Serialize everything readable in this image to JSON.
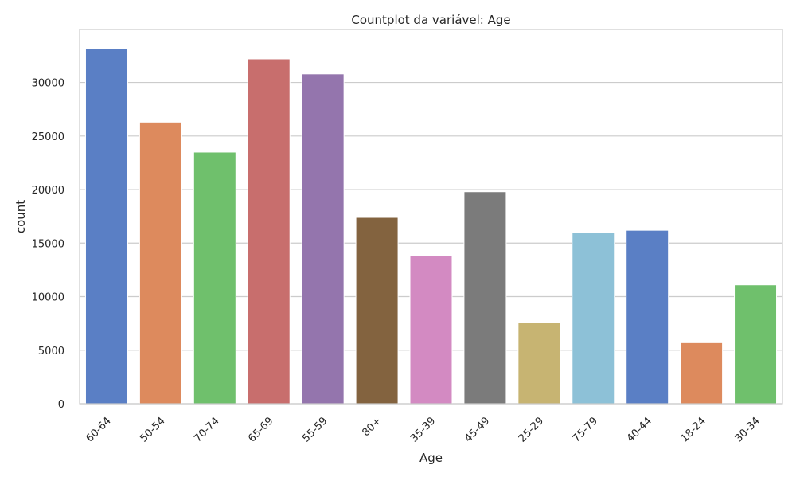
{
  "chart_data": {
    "type": "bar",
    "title": "Countplot da variável: Age",
    "xlabel": "Age",
    "ylabel": "count",
    "categories": [
      "60-64",
      "50-54",
      "70-74",
      "65-69",
      "55-59",
      "80+",
      "35-39",
      "45-49",
      "25-29",
      "75-79",
      "40-44",
      "18-24",
      "30-34"
    ],
    "values": [
      33200,
      26300,
      23500,
      32200,
      30800,
      17400,
      13800,
      19800,
      7600,
      16000,
      16200,
      5700,
      11100
    ],
    "colors": [
      "#5a7fc5",
      "#dd8a5d",
      "#6fc06c",
      "#c86e6d",
      "#9475ad",
      "#83633f",
      "#d38ac2",
      "#7b7b7b",
      "#c7b472",
      "#8dc1d7",
      "#5a7fc5",
      "#dd8a5d",
      "#6fc06c"
    ],
    "ylim": [
      0,
      34950
    ],
    "yticks": [
      0,
      5000,
      10000,
      15000,
      20000,
      25000,
      30000
    ],
    "ytick_labels": [
      "0",
      "5000",
      "10000",
      "15000",
      "20000",
      "25000",
      "30000"
    ],
    "grid": true,
    "legend": "none"
  }
}
